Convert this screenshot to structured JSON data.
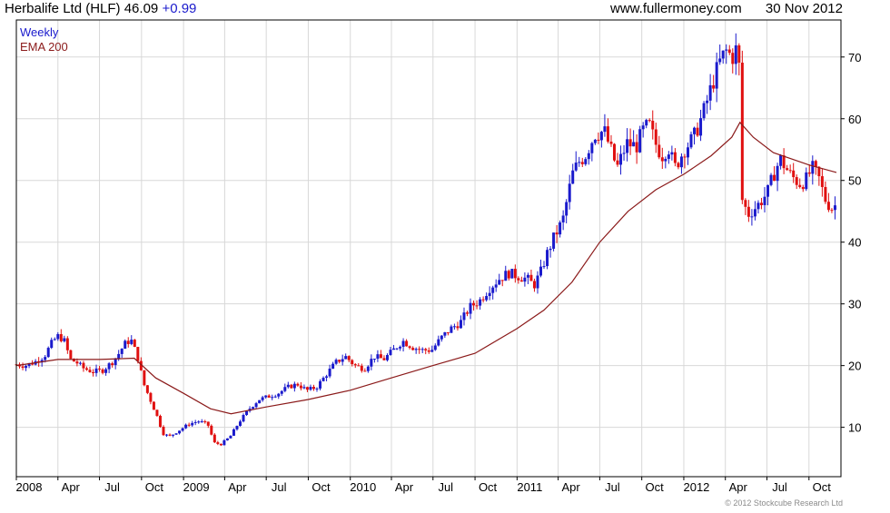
{
  "header": {
    "title": "Herbalife Ltd (HLF)",
    "price": "46.09",
    "change": "+0.99",
    "source": "www.fullermoney.com",
    "date": "30 Nov 2012"
  },
  "legend": {
    "weekly": "Weekly",
    "ema": "EMA 200"
  },
  "copyright": "© 2012 Stockcube Research Ltd",
  "colors": {
    "up": "#1a1acc",
    "down": "#e01010",
    "ema": "#8b1a1a",
    "grid": "#d8d8d8"
  },
  "chart_data": {
    "type": "candlestick",
    "title": "Herbalife Ltd (HLF) 46.09 +0.99",
    "interval": "Weekly",
    "xlim": [
      "2008-01-01",
      "2012-12-10"
    ],
    "ylim": [
      2,
      76
    ],
    "yticks": [
      10,
      20,
      30,
      40,
      50,
      60,
      70
    ],
    "xticks": [
      {
        "label": "2008",
        "date": "2008-01-01"
      },
      {
        "label": "Apr",
        "date": "2008-04-01"
      },
      {
        "label": "Jul",
        "date": "2008-07-01"
      },
      {
        "label": "Oct",
        "date": "2008-10-01"
      },
      {
        "label": "2009",
        "date": "2009-01-01"
      },
      {
        "label": "Apr",
        "date": "2009-04-01"
      },
      {
        "label": "Jul",
        "date": "2009-07-01"
      },
      {
        "label": "Oct",
        "date": "2009-10-01"
      },
      {
        "label": "2010",
        "date": "2010-01-01"
      },
      {
        "label": "Apr",
        "date": "2010-04-01"
      },
      {
        "label": "Jul",
        "date": "2010-07-01"
      },
      {
        "label": "Oct",
        "date": "2010-10-01"
      },
      {
        "label": "2011",
        "date": "2011-01-01"
      },
      {
        "label": "Apr",
        "date": "2011-04-01"
      },
      {
        "label": "Jul",
        "date": "2011-07-01"
      },
      {
        "label": "Oct",
        "date": "2011-10-01"
      },
      {
        "label": "2012",
        "date": "2012-01-01"
      },
      {
        "label": "Apr",
        "date": "2012-04-01"
      },
      {
        "label": "Jul",
        "date": "2012-07-01"
      },
      {
        "label": "Oct",
        "date": "2012-10-01"
      }
    ],
    "grid": true,
    "y_axis_side": "right",
    "legend_position": "top-left",
    "price_series": {
      "name": "Weekly",
      "points": [
        [
          "2008-01-01",
          20.2
        ],
        [
          "2008-01-21",
          20.0
        ],
        [
          "2008-02-11",
          20.6
        ],
        [
          "2008-03-03",
          21.6
        ],
        [
          "2008-03-17",
          23.5
        ],
        [
          "2008-03-31",
          24.8
        ],
        [
          "2008-04-14",
          24.2
        ],
        [
          "2008-04-28",
          21.0
        ],
        [
          "2008-05-12",
          20.5
        ],
        [
          "2008-05-26",
          19.6
        ],
        [
          "2008-06-16",
          19.0
        ],
        [
          "2008-07-07",
          19.2
        ],
        [
          "2008-07-28",
          20.5
        ],
        [
          "2008-08-11",
          21.8
        ],
        [
          "2008-08-25",
          23.5
        ],
        [
          "2008-09-08",
          24.2
        ],
        [
          "2008-09-22",
          21.5
        ],
        [
          "2008-10-06",
          17.0
        ],
        [
          "2008-10-20",
          14.5
        ],
        [
          "2008-11-03",
          12.0
        ],
        [
          "2008-11-17",
          9.0
        ],
        [
          "2008-12-01",
          8.5
        ],
        [
          "2008-12-22",
          9.5
        ],
        [
          "2009-01-12",
          10.5
        ],
        [
          "2009-02-02",
          11.0
        ],
        [
          "2009-02-23",
          10.5
        ],
        [
          "2009-03-09",
          7.5
        ],
        [
          "2009-03-23",
          7.2
        ],
        [
          "2009-04-13",
          8.5
        ],
        [
          "2009-05-04",
          11.0
        ],
        [
          "2009-05-25",
          13.0
        ],
        [
          "2009-06-15",
          14.5
        ],
        [
          "2009-07-06",
          15.0
        ],
        [
          "2009-07-27",
          15.5
        ],
        [
          "2009-08-17",
          16.5
        ],
        [
          "2009-09-07",
          17.0
        ],
        [
          "2009-09-28",
          16.0
        ],
        [
          "2009-10-19",
          16.5
        ],
        [
          "2009-11-09",
          18.5
        ],
        [
          "2009-11-30",
          20.5
        ],
        [
          "2009-12-21",
          21.5
        ],
        [
          "2010-01-11",
          20.0
        ],
        [
          "2010-02-01",
          19.5
        ],
        [
          "2010-02-22",
          21.5
        ],
        [
          "2010-03-15",
          21.0
        ],
        [
          "2010-04-05",
          22.5
        ],
        [
          "2010-04-26",
          24.0
        ],
        [
          "2010-05-17",
          23.0
        ],
        [
          "2010-06-07",
          22.5
        ],
        [
          "2010-06-28",
          22.5
        ],
        [
          "2010-07-19",
          24.5
        ],
        [
          "2010-08-09",
          26.0
        ],
        [
          "2010-08-30",
          27.0
        ],
        [
          "2010-09-20",
          29.5
        ],
        [
          "2010-10-11",
          30.5
        ],
        [
          "2010-11-01",
          32.5
        ],
        [
          "2010-11-22",
          34.0
        ],
        [
          "2010-12-13",
          35.0
        ],
        [
          "2011-01-03",
          34.5
        ],
        [
          "2011-01-24",
          34.0
        ],
        [
          "2011-02-07",
          33.0
        ],
        [
          "2011-02-21",
          35.0
        ],
        [
          "2011-03-07",
          38.0
        ],
        [
          "2011-03-21",
          40.5
        ],
        [
          "2011-04-11",
          43.5
        ],
        [
          "2011-05-02",
          51.0
        ],
        [
          "2011-05-16",
          53.0
        ],
        [
          "2011-05-30",
          54.0
        ],
        [
          "2011-06-20",
          57.5
        ],
        [
          "2011-07-11",
          58.0
        ],
        [
          "2011-07-25",
          55.0
        ],
        [
          "2011-08-08",
          52.0
        ],
        [
          "2011-08-29",
          56.0
        ],
        [
          "2011-09-19",
          55.5
        ],
        [
          "2011-10-03",
          58.0
        ],
        [
          "2011-10-17",
          59.0
        ],
        [
          "2011-10-31",
          56.0
        ],
        [
          "2011-11-14",
          54.0
        ],
        [
          "2011-11-28",
          55.5
        ],
        [
          "2011-12-12",
          52.0
        ],
        [
          "2012-01-02",
          55.0
        ],
        [
          "2012-01-23",
          57.0
        ],
        [
          "2012-02-13",
          61.0
        ],
        [
          "2012-03-05",
          66.0
        ],
        [
          "2012-03-19",
          69.0
        ],
        [
          "2012-04-02",
          71.0
        ],
        [
          "2012-04-16",
          70.0
        ],
        [
          "2012-04-30",
          72.0
        ],
        [
          "2012-05-07",
          47.0
        ],
        [
          "2012-05-21",
          44.5
        ],
        [
          "2012-06-11",
          46.0
        ],
        [
          "2012-07-02",
          48.0
        ],
        [
          "2012-07-16",
          51.0
        ],
        [
          "2012-07-30",
          53.5
        ],
        [
          "2012-08-20",
          51.0
        ],
        [
          "2012-09-10",
          49.5
        ],
        [
          "2012-09-24",
          50.0
        ],
        [
          "2012-10-08",
          52.0
        ],
        [
          "2012-10-22",
          50.5
        ],
        [
          "2012-11-05",
          47.0
        ],
        [
          "2012-11-19",
          45.5
        ],
        [
          "2012-11-30",
          46.1
        ]
      ]
    },
    "ema_series": {
      "name": "EMA 200",
      "points": [
        [
          "2008-01-01",
          20.0
        ],
        [
          "2008-04-01",
          21.0
        ],
        [
          "2008-07-01",
          21.0
        ],
        [
          "2008-09-15",
          21.2
        ],
        [
          "2008-11-01",
          18.0
        ],
        [
          "2009-01-01",
          15.5
        ],
        [
          "2009-03-01",
          13.0
        ],
        [
          "2009-04-15",
          12.2
        ],
        [
          "2009-07-01",
          13.3
        ],
        [
          "2009-10-01",
          14.5
        ],
        [
          "2010-01-01",
          16.0
        ],
        [
          "2010-04-01",
          18.0
        ],
        [
          "2010-07-01",
          20.0
        ],
        [
          "2010-10-01",
          22.0
        ],
        [
          "2011-01-01",
          26.0
        ],
        [
          "2011-03-01",
          29.0
        ],
        [
          "2011-05-01",
          33.5
        ],
        [
          "2011-07-01",
          40.0
        ],
        [
          "2011-09-01",
          45.0
        ],
        [
          "2011-11-01",
          48.5
        ],
        [
          "2012-01-01",
          51.0
        ],
        [
          "2012-03-01",
          54.0
        ],
        [
          "2012-04-15",
          57.0
        ],
        [
          "2012-05-03",
          59.4
        ],
        [
          "2012-06-01",
          57.0
        ],
        [
          "2012-07-15",
          54.5
        ],
        [
          "2012-10-01",
          52.5
        ],
        [
          "2012-11-30",
          51.3
        ]
      ]
    }
  }
}
